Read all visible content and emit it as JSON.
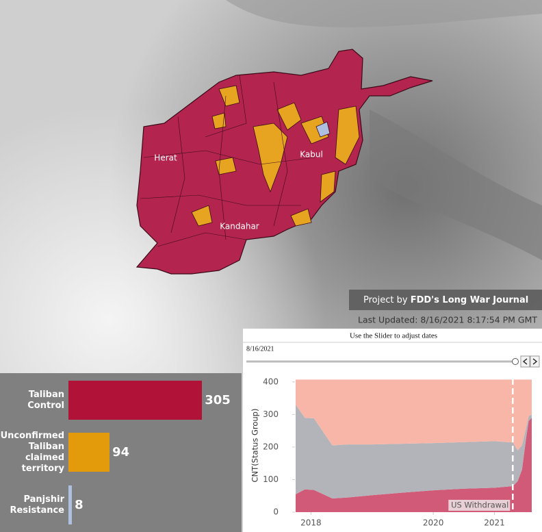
{
  "map": {
    "labels": [
      "Herat",
      "Kabul",
      "Kandahar"
    ]
  },
  "credit": {
    "prefix": "Project by ",
    "name": "FDD's Long War Journal"
  },
  "last_updated": "Last Updated: 8/16/2021 8:17:54 PM GMT",
  "slider": {
    "hint": "Use the Slider to adjust dates",
    "value": "8/16/2021"
  },
  "chart_data": [
    {
      "type": "bar",
      "categories": [
        "Taliban Control",
        "Unconfirmed Taliban claimed territory",
        "Panjshir Resistance"
      ],
      "values": [
        305,
        94,
        8
      ],
      "colors": [
        "#b01238",
        "#e39b0c",
        "#aebfe0"
      ]
    },
    {
      "type": "area",
      "y_label": "CNT(Status Group)",
      "x": [
        2017.75,
        2017.9,
        2018.05,
        2018.35,
        2018.6,
        2019.0,
        2019.5,
        2020.0,
        2020.5,
        2021.0,
        2021.3,
        2021.38,
        2021.45,
        2021.52,
        2021.56,
        2021.61
      ],
      "series": [
        {
          "color": "#d05a78",
          "values": [
            55,
            70,
            68,
            42,
            45,
            52,
            60,
            67,
            72,
            75,
            80,
            95,
            130,
            230,
            280,
            290
          ]
        },
        {
          "color": "#b2b4b9",
          "values": [
            275,
            220,
            220,
            163,
            163,
            156,
            150,
            145,
            143,
            143,
            134,
            95,
            75,
            30,
            15,
            10
          ]
        },
        {
          "color": "#f8b6a9",
          "values": [
            77,
            117,
            119,
            202,
            199,
            199,
            197,
            195,
            192,
            189,
            193,
            217,
            202,
            147,
            112,
            107
          ]
        }
      ],
      "xlim": [
        2017.75,
        2021.61
      ],
      "xticks": [
        2018,
        2020,
        2021
      ],
      "ylim": [
        0,
        410
      ],
      "yticks": [
        0,
        100,
        200,
        300,
        400
      ],
      "annotations": [
        {
          "x": 2021.3,
          "label": "US Withdrawal"
        }
      ]
    }
  ]
}
